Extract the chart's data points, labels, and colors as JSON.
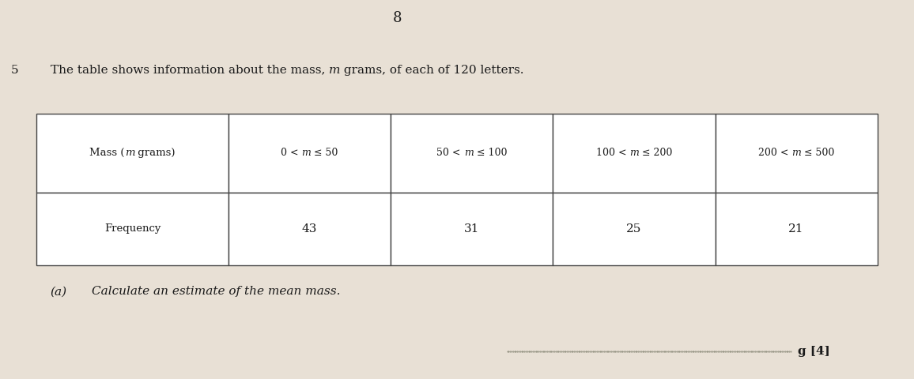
{
  "page_number": "8",
  "question_number": "5",
  "intro_text_parts": [
    [
      "The table shows information about the mass, ",
      false
    ],
    [
      "m",
      true
    ],
    [
      " grams, of each of 120 letters.",
      false
    ]
  ],
  "table_headers": [
    "Mass (m grams)",
    "0 < m ≤ 50",
    "50 < m ≤ 100",
    "100 < m ≤ 200",
    "200 < m ≤ 500"
  ],
  "table_row_label": "Frequency",
  "table_row_values": [
    "43",
    "31",
    "25",
    "21"
  ],
  "part_a_label": "(a)",
  "part_a_text_parts": [
    [
      "Calculate an estimate of the mean mass.",
      false
    ]
  ],
  "answer_suffix": "g [4]",
  "bg_color": "#e8e0d5",
  "table_line_color": "#444444",
  "text_color": "#1a1a1a"
}
